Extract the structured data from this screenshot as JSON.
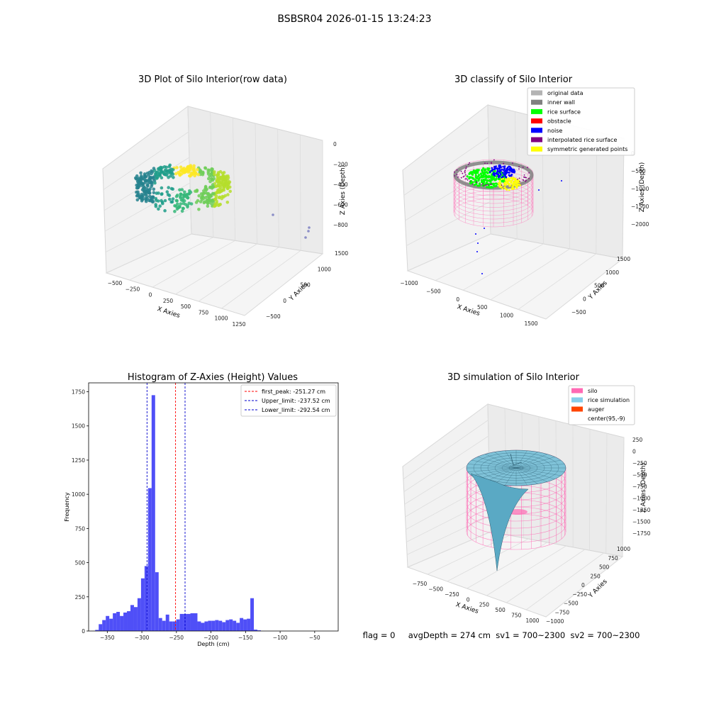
{
  "figure": {
    "suptitle": "BSBSR04 2026-01-15 13:24:23",
    "footer": "flag = 0     avgDepth = 274 cm  sv1 = 700~2300  sv2 = 700~2300"
  },
  "colors": {
    "grid": "#e2e2e2",
    "pane": "#f2f2f2",
    "hist_bar": "#4f4ff7",
    "peak_line": "#ff0000",
    "limit_line": "#0000cc",
    "noise": "#0000ff",
    "rice_surface": "#00ff00",
    "inner_wall": "#808080",
    "original_data": "#b3b3b3",
    "obstacle": "#ff0000",
    "interpolated": "#800080",
    "symmetric": "#ffff00",
    "silo": "#ff69b4",
    "rice_simulation": "#87ceeb",
    "auger": "#ff4500"
  },
  "chart_data": [
    {
      "type": "scatter",
      "projection": "3d",
      "title": "3D Plot of Silo Interior(row data)",
      "xlabel": "X Axies",
      "ylabel": "Y Axies",
      "zlabel": "Z Axies (Depth)",
      "x_ticks": [
        "−500",
        "−250",
        "0",
        "250",
        "500",
        "750",
        "1000",
        "1250"
      ],
      "y_ticks": [
        "−500",
        "0",
        "500",
        "1000",
        "1500"
      ],
      "z_ticks": [
        "0",
        "−200",
        "−400",
        "−600",
        "−800"
      ],
      "colormap": "viridis",
      "outliers": [
        [
          1150,
          1100,
          -700
        ],
        [
          1350,
          1300,
          -820
        ],
        [
          1360,
          1350,
          -760
        ],
        [
          1330,
          1310,
          -900
        ]
      ]
    },
    {
      "type": "scatter",
      "projection": "3d",
      "title": "3D classify of Silo Interior",
      "xlabel": "X Axies",
      "ylabel": "Y Axies",
      "zlabel": "Z Axies (Depth)",
      "x_ticks": [
        "−1000",
        "−500",
        "0",
        "500",
        "1000",
        "1500"
      ],
      "y_ticks": [
        "−500",
        "0",
        "500",
        "1000",
        "1500"
      ],
      "z_ticks": [
        "0",
        "−500",
        "−1000",
        "−1500",
        "−2000"
      ],
      "legend": [
        "original data",
        "inner wall",
        "rice surface",
        "obstacle",
        "noise",
        "interpolated rice surface",
        "symmetric generated points"
      ],
      "legend_position": "top-right"
    },
    {
      "type": "bar",
      "title": "Histogram of Z-Axies (Height) Values",
      "xlabel": "Depth (cm)",
      "ylabel": "Frequency",
      "xlim": [
        -377,
        -16
      ],
      "ylim": [
        0,
        1815
      ],
      "x_ticks": [
        -350,
        -300,
        -250,
        -200,
        -150,
        -100,
        -50
      ],
      "x_tick_labels": [
        "−350",
        "−300",
        "−250",
        "−200",
        "−150",
        "−100",
        "−50"
      ],
      "y_ticks": [
        0,
        250,
        500,
        750,
        1000,
        1250,
        1500,
        1750
      ],
      "bin_start": -367.5,
      "bin_width": 5.1,
      "values": [
        8,
        50,
        80,
        110,
        90,
        130,
        140,
        110,
        135,
        145,
        190,
        175,
        240,
        385,
        475,
        1045,
        1725,
        430,
        95,
        75,
        120,
        70,
        70,
        85,
        125,
        125,
        125,
        130,
        130,
        70,
        60,
        70,
        75,
        75,
        80,
        75,
        65,
        80,
        85,
        75,
        60,
        95,
        85,
        90,
        240,
        10,
        5
      ],
      "vlines": [
        {
          "label": "first_peak: -251.27 cm",
          "x": -251.27,
          "color": "#ff0000"
        },
        {
          "label": "Upper_limit: -237.52 cm",
          "x": -237.52,
          "color": "#0000cc"
        },
        {
          "label": "Lower_limit: -292.54 cm",
          "x": -292.54,
          "color": "#0000cc"
        }
      ],
      "legend_position": "top-right"
    },
    {
      "type": "surface",
      "projection": "3d",
      "title": "3D simulation of Silo Interior",
      "xlabel": "X Axies",
      "ylabel": "Y Axies",
      "zlabel": "Z Axies (Depth)",
      "x_ticks": [
        "−750",
        "−500",
        "−250",
        "0",
        "250",
        "500",
        "750",
        "1000"
      ],
      "y_ticks": [
        "−1000",
        "−750",
        "−500",
        "−250",
        "0",
        "250",
        "500",
        "750",
        "1000"
      ],
      "z_ticks": [
        "250",
        "0",
        "−250",
        "−500",
        "−750",
        "−1000",
        "−1250",
        "−1500",
        "−1750"
      ],
      "legend": [
        "silo",
        "rice simulation",
        "auger",
        "center(95,-9)"
      ],
      "legend_position": "top-right"
    }
  ]
}
